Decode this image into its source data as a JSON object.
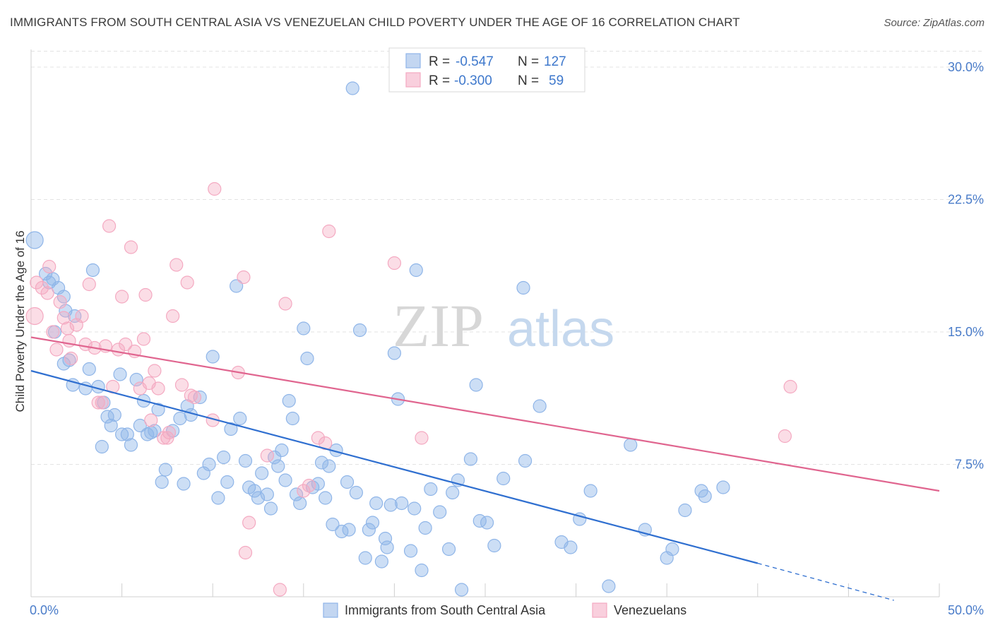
{
  "title": "IMMIGRANTS FROM SOUTH CENTRAL ASIA VS VENEZUELAN CHILD POVERTY UNDER THE AGE OF 16 CORRELATION CHART",
  "source": "Source: ZipAtlas.com",
  "watermark": {
    "zip": "ZIP",
    "atlas": "atlas"
  },
  "legend_box": {
    "rows": [
      {
        "r_label": "R =",
        "r_value": "-0.547",
        "n_label": "N =",
        "n_value": "127"
      },
      {
        "r_label": "R =",
        "r_value": "-0.300",
        "n_label": "N =",
        "n_value": "59"
      }
    ]
  },
  "chart_data": {
    "type": "scatter",
    "xlim": [
      0,
      50
    ],
    "ylim": [
      0,
      31
    ],
    "ylabel": "Child Poverty Under the Age of 16",
    "x_tick_labels": [
      "0.0%",
      "50.0%"
    ],
    "y_ticks": [
      7.5,
      15.0,
      22.5,
      30.0
    ],
    "y_tick_labels": [
      "7.5%",
      "15.0%",
      "22.5%",
      "30.0%"
    ],
    "legend_placement": "top-center",
    "grid": true,
    "colors": {
      "blue": "#8fb5e8",
      "blue_line": "#2f6fd0",
      "pink": "#f4a9c1",
      "pink_line": "#e0658f"
    },
    "series": [
      {
        "name": "Immigrants from South Central Asia",
        "color": "blue",
        "trend": {
          "x": [
            0,
            40
          ],
          "y": [
            12.8,
            1.9
          ],
          "dashed_to": [
            47.5,
            -0.2
          ]
        },
        "points": [
          [
            0.2,
            20.2
          ],
          [
            0.8,
            18.3
          ],
          [
            1.0,
            17.8
          ],
          [
            1.2,
            18.0
          ],
          [
            1.5,
            17.5
          ],
          [
            1.8,
            17.0
          ],
          [
            1.3,
            15.0
          ],
          [
            1.9,
            16.2
          ],
          [
            2.4,
            15.9
          ],
          [
            2.1,
            13.4
          ],
          [
            1.8,
            13.2
          ],
          [
            2.3,
            12.0
          ],
          [
            3.0,
            11.8
          ],
          [
            3.2,
            12.9
          ],
          [
            3.4,
            18.5
          ],
          [
            3.7,
            11.9
          ],
          [
            3.9,
            8.5
          ],
          [
            4.0,
            11.0
          ],
          [
            4.2,
            10.2
          ],
          [
            4.4,
            9.7
          ],
          [
            4.6,
            10.3
          ],
          [
            4.9,
            12.6
          ],
          [
            5.0,
            9.2
          ],
          [
            5.3,
            9.2
          ],
          [
            5.5,
            8.6
          ],
          [
            5.8,
            12.3
          ],
          [
            6.0,
            9.7
          ],
          [
            6.2,
            11.1
          ],
          [
            6.4,
            9.2
          ],
          [
            6.6,
            9.3
          ],
          [
            6.8,
            9.4
          ],
          [
            7.0,
            10.6
          ],
          [
            7.2,
            6.5
          ],
          [
            7.4,
            7.2
          ],
          [
            7.8,
            9.4
          ],
          [
            8.2,
            10.1
          ],
          [
            8.4,
            6.4
          ],
          [
            8.6,
            10.8
          ],
          [
            8.8,
            10.3
          ],
          [
            9.3,
            11.3
          ],
          [
            9.5,
            7.0
          ],
          [
            9.8,
            7.5
          ],
          [
            10.0,
            13.6
          ],
          [
            10.3,
            5.6
          ],
          [
            10.6,
            7.9
          ],
          [
            10.8,
            6.5
          ],
          [
            11.0,
            9.5
          ],
          [
            11.3,
            17.6
          ],
          [
            11.5,
            10.1
          ],
          [
            11.8,
            7.7
          ],
          [
            12.0,
            6.2
          ],
          [
            12.3,
            6.0
          ],
          [
            12.5,
            5.6
          ],
          [
            12.7,
            7.0
          ],
          [
            13.0,
            5.8
          ],
          [
            13.2,
            5.0
          ],
          [
            13.4,
            7.9
          ],
          [
            13.6,
            7.4
          ],
          [
            13.8,
            8.3
          ],
          [
            14.0,
            6.6
          ],
          [
            14.2,
            11.1
          ],
          [
            14.4,
            10.1
          ],
          [
            14.6,
            5.8
          ],
          [
            14.8,
            5.3
          ],
          [
            15.0,
            15.2
          ],
          [
            15.2,
            13.5
          ],
          [
            15.5,
            6.2
          ],
          [
            15.8,
            6.4
          ],
          [
            16.0,
            7.6
          ],
          [
            16.2,
            5.6
          ],
          [
            16.4,
            7.4
          ],
          [
            16.6,
            4.1
          ],
          [
            16.8,
            8.3
          ],
          [
            17.1,
            3.7
          ],
          [
            17.4,
            6.5
          ],
          [
            17.5,
            3.8
          ],
          [
            17.7,
            28.8
          ],
          [
            17.9,
            5.9
          ],
          [
            18.1,
            15.1
          ],
          [
            18.4,
            2.2
          ],
          [
            18.6,
            3.8
          ],
          [
            18.8,
            4.2
          ],
          [
            19.0,
            5.3
          ],
          [
            19.3,
            2.0
          ],
          [
            19.5,
            3.3
          ],
          [
            19.6,
            2.8
          ],
          [
            19.8,
            5.2
          ],
          [
            20.0,
            13.8
          ],
          [
            20.2,
            11.2
          ],
          [
            20.4,
            5.3
          ],
          [
            20.9,
            2.6
          ],
          [
            21.1,
            5.0
          ],
          [
            21.2,
            18.5
          ],
          [
            21.5,
            1.5
          ],
          [
            21.7,
            3.9
          ],
          [
            22.0,
            6.1
          ],
          [
            22.5,
            4.8
          ],
          [
            23.0,
            2.7
          ],
          [
            23.2,
            5.9
          ],
          [
            23.5,
            6.6
          ],
          [
            23.7,
            0.4
          ],
          [
            24.2,
            7.8
          ],
          [
            24.5,
            12.0
          ],
          [
            24.7,
            4.3
          ],
          [
            25.1,
            4.2
          ],
          [
            25.5,
            2.9
          ],
          [
            26.0,
            6.7
          ],
          [
            27.1,
            17.5
          ],
          [
            27.2,
            7.7
          ],
          [
            28.0,
            10.8
          ],
          [
            29.2,
            3.1
          ],
          [
            29.7,
            2.8
          ],
          [
            30.2,
            4.4
          ],
          [
            30.8,
            6.0
          ],
          [
            31.8,
            0.6
          ],
          [
            33.0,
            8.6
          ],
          [
            33.8,
            3.8
          ],
          [
            35.0,
            2.2
          ],
          [
            35.3,
            2.7
          ],
          [
            36.0,
            4.9
          ],
          [
            36.9,
            6.0
          ],
          [
            37.1,
            5.7
          ],
          [
            38.1,
            6.2
          ]
        ]
      },
      {
        "name": "Venezuelans",
        "color": "pink",
        "trend": {
          "x": [
            0,
            50
          ],
          "y": [
            14.7,
            6.0
          ]
        },
        "points": [
          [
            0.2,
            15.9
          ],
          [
            0.3,
            17.8
          ],
          [
            0.6,
            17.5
          ],
          [
            0.9,
            17.2
          ],
          [
            1.0,
            18.7
          ],
          [
            1.2,
            15.0
          ],
          [
            1.4,
            14.0
          ],
          [
            1.6,
            16.7
          ],
          [
            1.8,
            15.8
          ],
          [
            2.0,
            15.2
          ],
          [
            2.1,
            14.5
          ],
          [
            2.2,
            13.5
          ],
          [
            2.5,
            15.4
          ],
          [
            2.8,
            15.9
          ],
          [
            3.0,
            14.3
          ],
          [
            3.2,
            17.7
          ],
          [
            3.5,
            14.1
          ],
          [
            3.7,
            11.0
          ],
          [
            3.9,
            11.0
          ],
          [
            4.1,
            14.2
          ],
          [
            4.3,
            21.0
          ],
          [
            4.5,
            11.9
          ],
          [
            4.8,
            14.0
          ],
          [
            5.0,
            17.0
          ],
          [
            5.2,
            14.3
          ],
          [
            5.5,
            19.8
          ],
          [
            5.7,
            13.9
          ],
          [
            6.0,
            11.8
          ],
          [
            6.2,
            14.6
          ],
          [
            6.3,
            17.1
          ],
          [
            6.5,
            12.1
          ],
          [
            6.6,
            10.0
          ],
          [
            6.8,
            12.8
          ],
          [
            7.0,
            11.8
          ],
          [
            7.3,
            9.0
          ],
          [
            7.5,
            9.0
          ],
          [
            7.6,
            9.3
          ],
          [
            7.8,
            15.9
          ],
          [
            8.0,
            18.8
          ],
          [
            8.3,
            12.0
          ],
          [
            8.6,
            17.8
          ],
          [
            8.8,
            11.4
          ],
          [
            9.0,
            11.3
          ],
          [
            10.0,
            10.0
          ],
          [
            10.1,
            23.1
          ],
          [
            11.4,
            12.7
          ],
          [
            11.7,
            18.1
          ],
          [
            11.8,
            2.5
          ],
          [
            12.0,
            4.2
          ],
          [
            13.0,
            8.0
          ],
          [
            13.7,
            0.4
          ],
          [
            14.0,
            16.6
          ],
          [
            15.0,
            6.0
          ],
          [
            15.3,
            6.3
          ],
          [
            15.8,
            9.0
          ],
          [
            16.2,
            8.7
          ],
          [
            16.4,
            20.7
          ],
          [
            20.0,
            18.9
          ],
          [
            21.5,
            9.0
          ],
          [
            41.5,
            9.1
          ],
          [
            41.8,
            11.9
          ]
        ]
      }
    ]
  },
  "bottom_legend": [
    {
      "label": "Immigrants from South Central Asia",
      "color": "blue"
    },
    {
      "label": "Venezuelans",
      "color": "pink"
    }
  ]
}
